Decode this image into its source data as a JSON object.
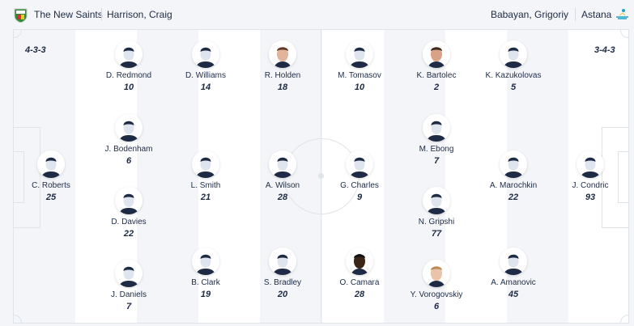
{
  "home": {
    "name": "The New Saints",
    "coach": "Harrison, Craig",
    "formation": "4-3-3",
    "color": "#2e8b3a",
    "players": [
      {
        "name": "C. Roberts",
        "number": "25",
        "col": 0,
        "row": 2,
        "photo": false
      },
      {
        "name": "D. Redmond",
        "number": "10",
        "col": 1,
        "row": 0,
        "photo": false
      },
      {
        "name": "J. Bodenham",
        "number": "6",
        "col": 1,
        "row": 1,
        "photo": false
      },
      {
        "name": "D. Davies",
        "number": "22",
        "col": 1,
        "row": 3,
        "photo": false
      },
      {
        "name": "J. Daniels",
        "number": "7",
        "col": 1,
        "row": 4,
        "photo": false
      },
      {
        "name": "D. Williams",
        "number": "14",
        "col": 2,
        "row": 0,
        "photo": false
      },
      {
        "name": "L. Smith",
        "number": "21",
        "col": 2,
        "row": 2,
        "photo": false
      },
      {
        "name": "B. Clark",
        "number": "19",
        "col": 2,
        "row": 5,
        "photo": false
      },
      {
        "name": "R. Holden",
        "number": "18",
        "col": 3,
        "row": 0,
        "photo": true,
        "skin": "#e2b49a",
        "hair": "#5a3a26"
      },
      {
        "name": "A. Wilson",
        "number": "28",
        "col": 3,
        "row": 2,
        "photo": false
      },
      {
        "name": "S. Bradley",
        "number": "20",
        "col": 3,
        "row": 5,
        "photo": false
      }
    ]
  },
  "away": {
    "name": "Astana",
    "coach": "Babayan, Grigoriy",
    "formation": "3-4-3",
    "color": "#1aa6c8",
    "players": [
      {
        "name": "M. Tomasov",
        "number": "10",
        "col": 4,
        "row": 0,
        "photo": false
      },
      {
        "name": "G. Charles",
        "number": "9",
        "col": 4,
        "row": 2,
        "photo": false
      },
      {
        "name": "O. Camara",
        "number": "28",
        "col": 4,
        "row": 5,
        "photo": true,
        "skin": "#3b2418",
        "hair": "#111"
      },
      {
        "name": "K. Bartolec",
        "number": "2",
        "col": 5,
        "row": 0,
        "photo": true,
        "skin": "#d9a287",
        "hair": "#3b2a1e"
      },
      {
        "name": "M. Ebong",
        "number": "7",
        "col": 5,
        "row": 1,
        "photo": false
      },
      {
        "name": "N. Gripshi",
        "number": "77",
        "col": 5,
        "row": 3,
        "photo": false
      },
      {
        "name": "Y. Vorogovskiy",
        "number": "6",
        "col": 5,
        "row": 4,
        "photo": true,
        "skin": "#eac3a8",
        "hair": "#b88a55"
      },
      {
        "name": "K. Kazukolovas",
        "number": "5",
        "col": 6,
        "row": 0,
        "photo": false
      },
      {
        "name": "A. Marochkin",
        "number": "22",
        "col": 6,
        "row": 2,
        "photo": false
      },
      {
        "name": "A. Amanovic",
        "number": "45",
        "col": 6,
        "row": 5,
        "photo": false
      },
      {
        "name": "J. Condric",
        "number": "93",
        "col": 7,
        "row": 2,
        "photo": false
      }
    ]
  }
}
